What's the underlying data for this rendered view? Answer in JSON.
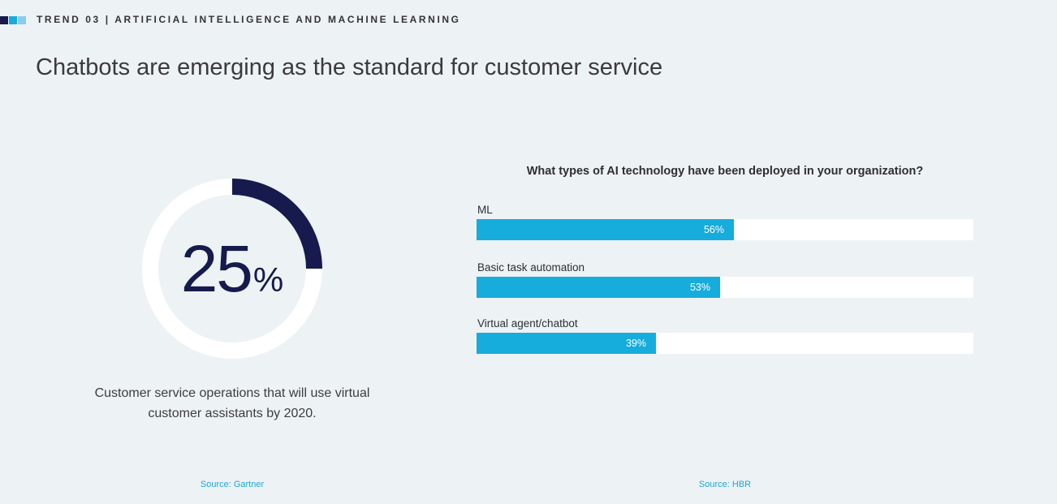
{
  "header": {
    "trend_label": "TREND 03 | ARTIFICIAL INTELLIGENCE AND MACHINE LEARNING",
    "square_colors": [
      "#161a4d",
      "#16acdc",
      "#8ccbea"
    ]
  },
  "page_title": "Chatbots are emerging as the standard for customer service",
  "stat": {
    "value": "25",
    "unit": "%",
    "caption": "Customer service operations that will use virtual customer assistants by 2020.",
    "source": "Source: Gartner"
  },
  "chart_data": [
    {
      "type": "pie",
      "values": [
        25,
        75
      ],
      "labels": [
        "",
        ""
      ],
      "colors": [
        "#161a4d",
        "#ffffff"
      ]
    },
    {
      "type": "bar",
      "orientation": "horizontal",
      "title": "What types of AI technology have been deployed in your organization?",
      "categories": [
        "ML",
        "Basic task automation",
        "Virtual agent/chatbot"
      ],
      "values": [
        56,
        53,
        39
      ],
      "value_labels": [
        "56%",
        "53%",
        "39%"
      ],
      "xlim": [
        0,
        100
      ],
      "bar_color": "#16acdc",
      "track_color": "#ffffff",
      "source": "Source: HBR"
    }
  ]
}
